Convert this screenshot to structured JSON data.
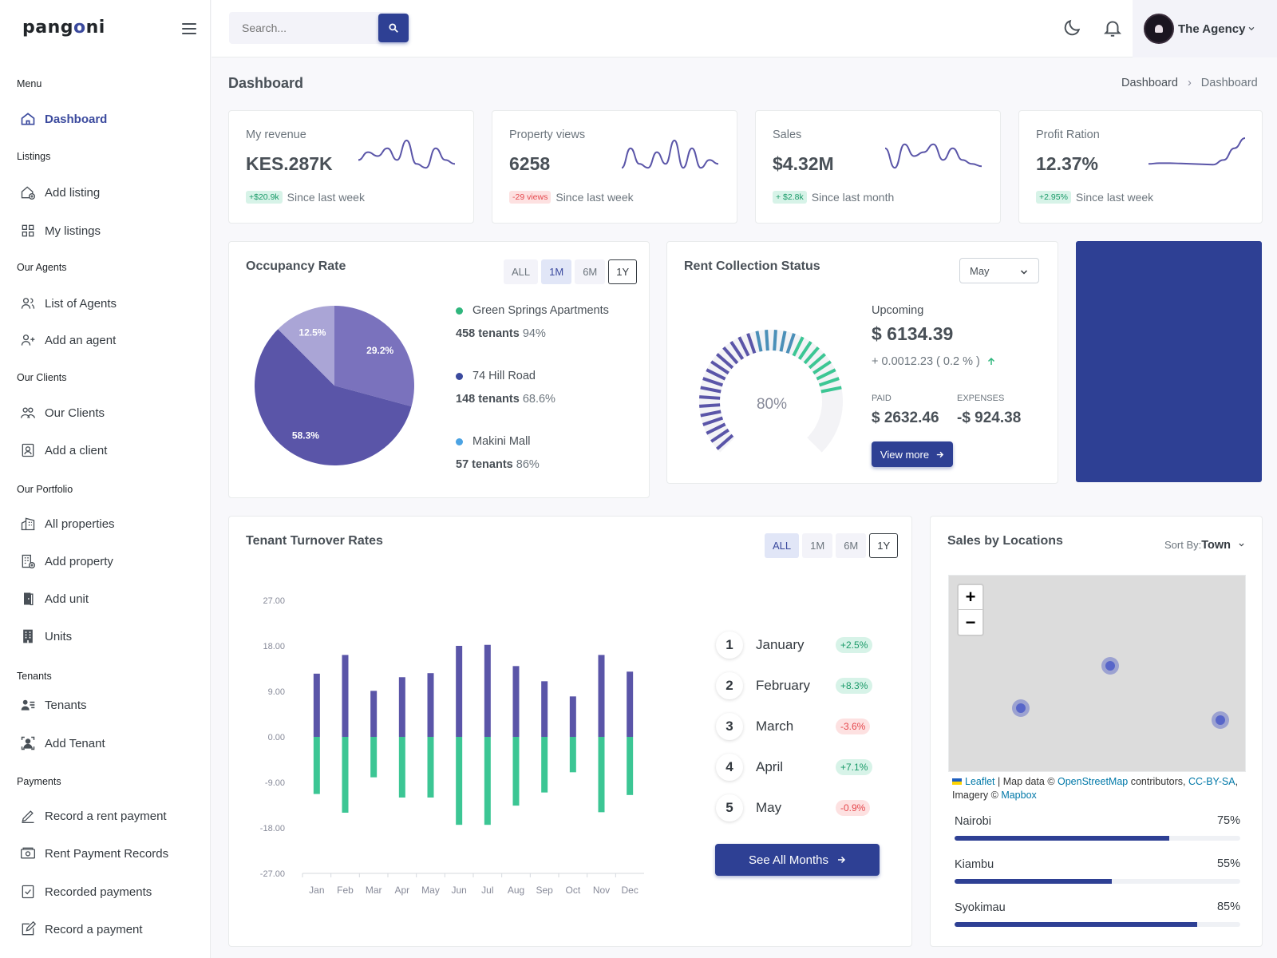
{
  "app": {
    "logo_pre": "pang",
    "logo_o": "o",
    "logo_post": "ni"
  },
  "sidebar": {
    "sections": [
      {
        "label": "Menu"
      },
      {
        "label": "Listings"
      },
      {
        "label": "Our Agents"
      },
      {
        "label": "Our Clients"
      },
      {
        "label": "Our Portfolio"
      },
      {
        "label": "Tenants"
      },
      {
        "label": "Payments"
      }
    ],
    "items": [
      {
        "label": "Dashboard",
        "icon": "home-icon"
      },
      {
        "label": "Add listing",
        "icon": "add-home-icon"
      },
      {
        "label": "My listings",
        "icon": "grid-icon"
      },
      {
        "label": "List of Agents",
        "icon": "users-icon"
      },
      {
        "label": "Add an agent",
        "icon": "user-plus-icon"
      },
      {
        "label": "Our Clients",
        "icon": "group-icon"
      },
      {
        "label": "Add a client",
        "icon": "contact-icon"
      },
      {
        "label": "All properties",
        "icon": "buildings-icon"
      },
      {
        "label": "Add property",
        "icon": "building-add-icon"
      },
      {
        "label": "Add unit",
        "icon": "door-icon"
      },
      {
        "label": "Units",
        "icon": "building-icon"
      },
      {
        "label": "Tenants",
        "icon": "user-list-icon"
      },
      {
        "label": "Add Tenant",
        "icon": "user-scan-icon"
      },
      {
        "label": "Record a rent payment",
        "icon": "pen-icon"
      },
      {
        "label": "Rent Payment Records",
        "icon": "money-icon"
      },
      {
        "label": "Recorded payments",
        "icon": "check-doc-icon"
      },
      {
        "label": "Record a payment",
        "icon": "edit-icon"
      }
    ]
  },
  "topbar": {
    "search_placeholder": "Search...",
    "user_name": "The Agency"
  },
  "page": {
    "title": "Dashboard",
    "breadcrumb": [
      "Dashboard",
      "Dashboard"
    ]
  },
  "kpis": [
    {
      "label": "My revenue",
      "value": "KES.287K",
      "badge": "+$20.9k",
      "badge_type": "up",
      "foot": "Since last week"
    },
    {
      "label": "Property views",
      "value": "6258",
      "badge": "-29 views",
      "badge_type": "down",
      "foot": "Since last week"
    },
    {
      "label": "Sales",
      "value": "$4.32M",
      "badge": "+ $2.8k",
      "badge_type": "up",
      "foot": "Since last month"
    },
    {
      "label": "Profit Ration",
      "value": "12.37%",
      "badge": "+2.95%",
      "badge_type": "up",
      "foot": "Since last week"
    }
  ],
  "occupancy": {
    "title": "Occupancy Rate",
    "tabs": [
      "ALL",
      "1M",
      "6M",
      "1Y"
    ],
    "properties": [
      {
        "name": "Green Springs Apartments",
        "tenants": "458 tenants",
        "pct": "94%",
        "color": "#2fb67d"
      },
      {
        "name": "74 Hill Road",
        "tenants": "148 tenants",
        "pct": "68.6%",
        "color": "#3b4a9e"
      },
      {
        "name": "Makini Mall",
        "tenants": "57 tenants",
        "pct": "86%",
        "color": "#4ba3e3"
      }
    ]
  },
  "rent": {
    "title": "Rent Collection Status",
    "month": "May",
    "gauge_label": "80%",
    "gauge_value": 0.8,
    "upcoming_label": "Upcoming",
    "upcoming_value": "$ 6134.39",
    "change": "+ 0.0012.23 ( 0.2 % )",
    "paid_label": "PAID",
    "paid_value": "$ 2632.46",
    "expenses_label": "EXPENSES",
    "expenses_value": "-$ 924.38",
    "button": "View more"
  },
  "turnover": {
    "title": "Tenant Turnover Rates",
    "tabs": [
      "ALL",
      "1M",
      "6M",
      "1Y"
    ],
    "months": [
      {
        "num": "1",
        "name": "January",
        "change": "+2.5%",
        "type": "up"
      },
      {
        "num": "2",
        "name": "February",
        "change": "+8.3%",
        "type": "up"
      },
      {
        "num": "3",
        "name": "March",
        "change": "-3.6%",
        "type": "down"
      },
      {
        "num": "4",
        "name": "April",
        "change": "+7.1%",
        "type": "up"
      },
      {
        "num": "5",
        "name": "May",
        "change": "-0.9%",
        "type": "down"
      }
    ],
    "button": "See All Months"
  },
  "locations": {
    "title": "Sales by Locations",
    "sort_label": "Sort By:",
    "sort_value": "Town",
    "attribution": {
      "leaflet": "Leaflet",
      "sep1": " | Map data © ",
      "osm": "OpenStreetMap",
      "contrib": " contributors, ",
      "cc": "CC-BY-SA",
      "imagery": ", Imagery © ",
      "mapbox": "Mapbox"
    },
    "items": [
      {
        "name": "Nairobi",
        "pct": "75%",
        "value": 0.75
      },
      {
        "name": "Kiambu",
        "pct": "55%",
        "value": 0.55
      },
      {
        "name": "Syokimau",
        "pct": "85%",
        "value": 0.85
      }
    ]
  },
  "chart_data": [
    {
      "type": "pie",
      "categories": [
        "Green Springs Apartments",
        "74 Hill Road",
        "Makini Mall"
      ],
      "values": [
        29.2,
        58.3,
        12.5
      ],
      "labels": [
        "29.2%",
        "58.3%",
        "12.5%"
      ],
      "colors": [
        "#7a72bd",
        "#5a55a8",
        "#aaa5d6"
      ]
    },
    {
      "type": "bar",
      "categories": [
        "Jan",
        "Feb",
        "Mar",
        "Apr",
        "May",
        "Jun",
        "Jul",
        "Aug",
        "Sep",
        "Oct",
        "Nov",
        "Dec"
      ],
      "series": [
        {
          "values": [
            12.5,
            16.2,
            9.1,
            11.8,
            12.6,
            18.0,
            18.2,
            14.0,
            11.0,
            8.0,
            16.2,
            12.9
          ],
          "color": "#5a55a8"
        },
        {
          "values": [
            -11.3,
            -15.0,
            -8.0,
            -12.0,
            -12.0,
            -17.4,
            -17.4,
            -13.6,
            -11.0,
            -7.0,
            -14.9,
            -11.5
          ],
          "color": "#3cc694"
        }
      ],
      "ylim": [
        -27,
        27
      ],
      "yticks": [
        "27.00",
        "18.00",
        "9.00",
        "0.00",
        "-9.00",
        "-18.00",
        "-27.00"
      ]
    },
    {
      "type": "line",
      "series": [
        {
          "name": "My revenue",
          "values": [
            2,
            3,
            2.5,
            3.5,
            2,
            4.5,
            1.5,
            1,
            3.5,
            2,
            1.5
          ]
        },
        {
          "name": "Property views",
          "values": [
            1,
            3.5,
            1.5,
            1,
            3,
            1.5,
            4.5,
            1,
            3.5,
            1,
            2,
            1.5
          ]
        },
        {
          "name": "Sales",
          "values": [
            3.5,
            1,
            4,
            2.5,
            3,
            4,
            2,
            3.5,
            2,
            1.5,
            1.2
          ]
        },
        {
          "name": "Profit Ration",
          "values": [
            1.5,
            1.6,
            1.6,
            1.55,
            1.5,
            1.45,
            1.4,
            2,
            3.5,
            4.8
          ]
        }
      ]
    }
  ]
}
